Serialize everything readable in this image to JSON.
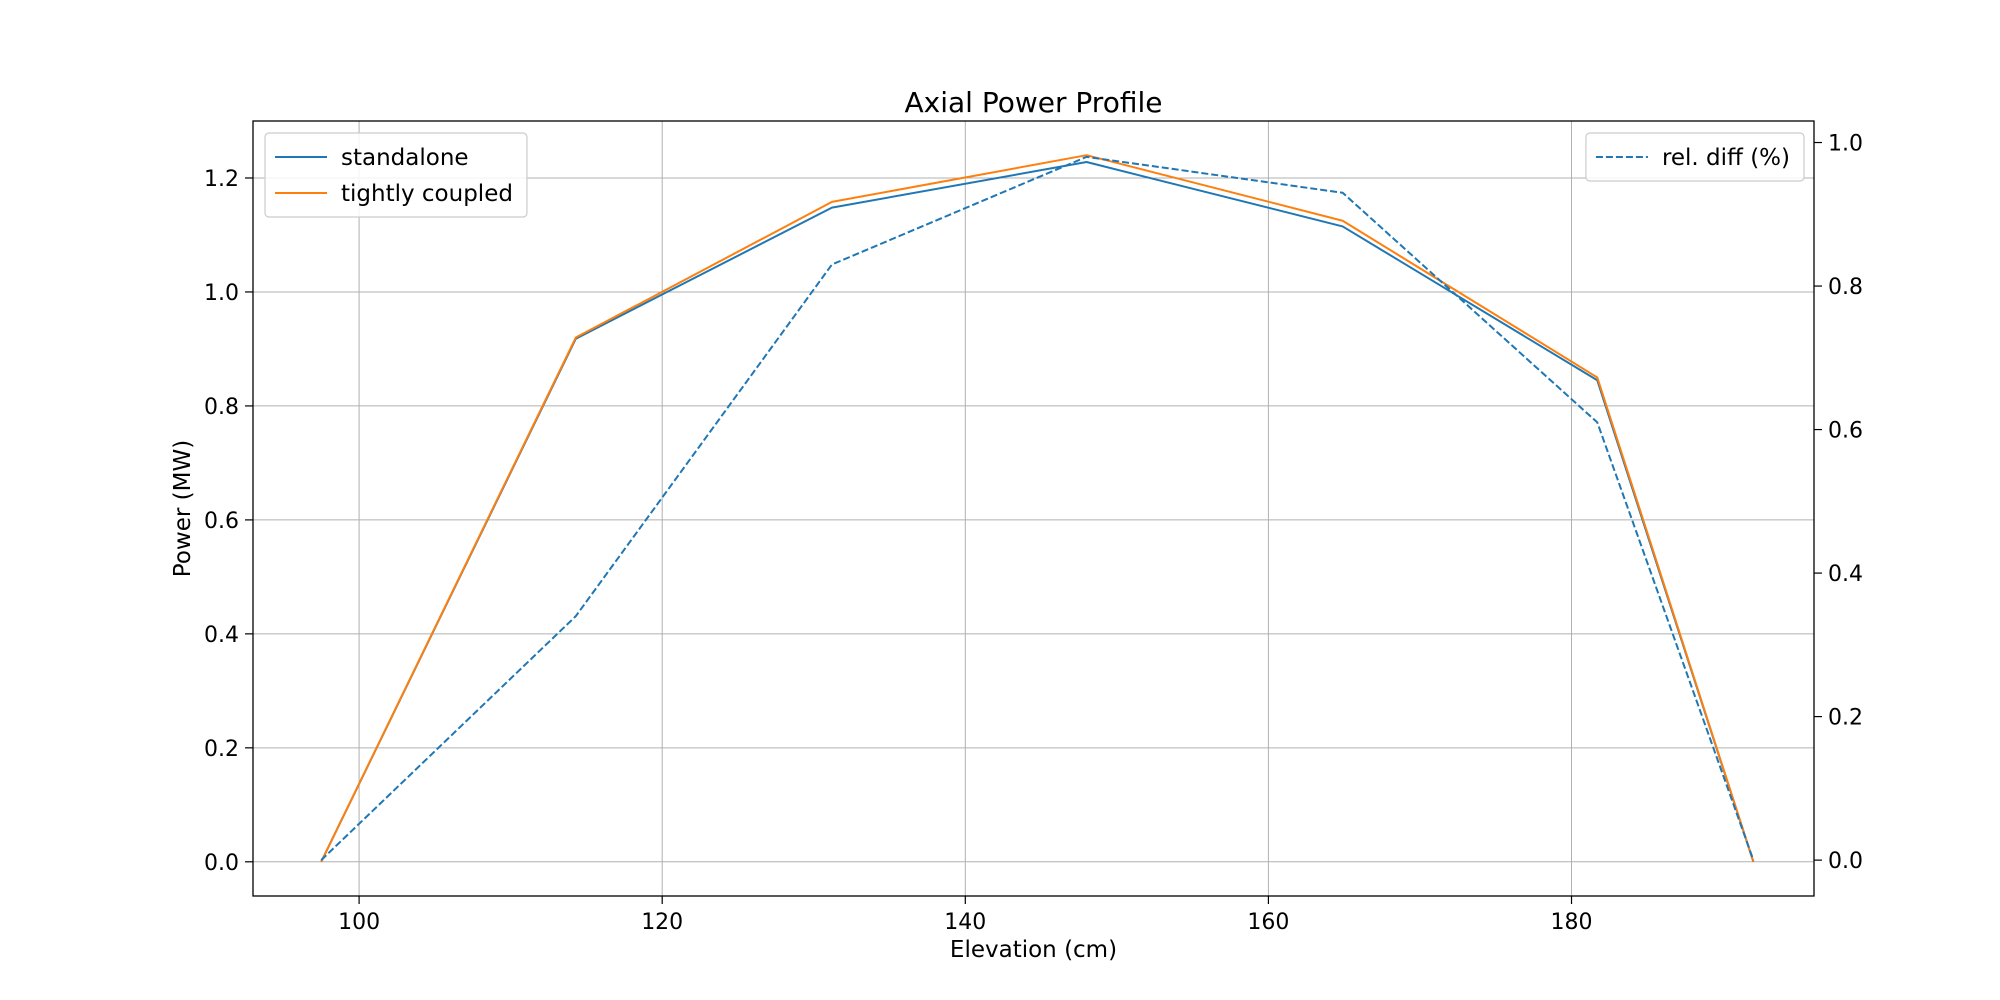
{
  "chart_data": {
    "type": "line",
    "title": "Axial Power Profile",
    "xlabel": "Elevation (cm)",
    "ylabel": "Power (MW)",
    "y2label": "",
    "xlim": [
      93,
      196
    ],
    "ylim": [
      -0.06,
      1.3
    ],
    "y2lim": [
      -0.05,
      1.03
    ],
    "xticks": [
      100,
      120,
      140,
      160,
      180
    ],
    "yticks": [
      0.0,
      0.2,
      0.4,
      0.6,
      0.8,
      1.0,
      1.2
    ],
    "y2ticks": [
      0.0,
      0.2,
      0.4,
      0.6,
      0.8,
      1.0
    ],
    "grid": true,
    "x": [
      97.5,
      114.3,
      131.2,
      148.0,
      164.9,
      181.7,
      192.0
    ],
    "series": [
      {
        "name": "standalone",
        "axis": "left",
        "style": "solid",
        "color": "#1f77b4",
        "values": [
          0.0,
          0.918,
          1.148,
          1.228,
          1.115,
          0.845,
          0.0
        ]
      },
      {
        "name": "tightly coupled",
        "axis": "left",
        "style": "solid",
        "color": "#ff7f0e",
        "values": [
          0.0,
          0.92,
          1.158,
          1.24,
          1.125,
          0.85,
          0.0
        ]
      },
      {
        "name": "rel. diff (%)",
        "axis": "right",
        "style": "dashed",
        "color": "#1f77b4",
        "values": [
          0.0,
          0.34,
          0.83,
          0.98,
          0.93,
          0.61,
          0.0
        ]
      }
    ],
    "legend_left_placement": "upper-left",
    "legend_right_placement": "upper-right"
  }
}
